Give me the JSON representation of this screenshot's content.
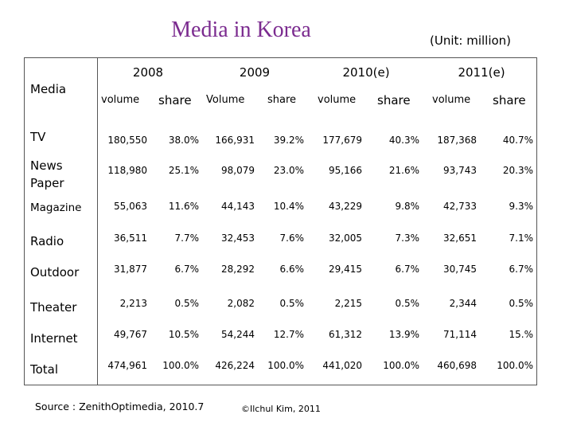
{
  "title": "Media in Korea",
  "unit": "(Unit: million)",
  "header": {
    "media": "Media",
    "years": [
      "2008",
      "2009",
      "2010(e)",
      "2011(e)"
    ],
    "subheaders": [
      "volume",
      "share",
      "Volume",
      "share",
      "volume",
      "share",
      "volume",
      "share"
    ]
  },
  "rows": [
    {
      "label": "TV",
      "values": [
        "180,550",
        "38.0%",
        "166,931",
        "39.2%",
        "177,679",
        "40.3%",
        "187,368",
        "40.7%"
      ]
    },
    {
      "label": "News Paper",
      "values": [
        "118,980",
        "25.1%",
        "98,079",
        "23.0%",
        "95,166",
        "21.6%",
        "93,743",
        "20.3%"
      ]
    },
    {
      "label": "Magazine",
      "values": [
        "55,063",
        "11.6%",
        "44,143",
        "10.4%",
        "43,229",
        "9.8%",
        "42,733",
        "9.3%"
      ]
    },
    {
      "label": "Radio",
      "values": [
        "36,511",
        "7.7%",
        "32,453",
        "7.6%",
        "32,005",
        "7.3%",
        "32,651",
        "7.1%"
      ]
    },
    {
      "label": "Outdoor",
      "values": [
        "31,877",
        "6.7%",
        "28,292",
        "6.6%",
        "29,415",
        "6.7%",
        "30,745",
        "6.7%"
      ]
    },
    {
      "label": "Theater",
      "values": [
        "2,213",
        "0.5%",
        "2,082",
        "0.5%",
        "2,215",
        "0.5%",
        "2,344",
        "0.5%"
      ]
    },
    {
      "label": "Internet",
      "values": [
        "49,767",
        "10.5%",
        "54,244",
        "12.7%",
        "61,312",
        "13.9%",
        "71,114",
        "15.%"
      ]
    },
    {
      "label": "Total",
      "values": [
        "474,961",
        "100.0%",
        "426,224",
        "100.0%",
        "441,020",
        "100.0%",
        "460,698",
        "100.0%"
      ]
    }
  ],
  "source": "Source : ZenithOptimedia, 2010.7",
  "copyright": "©Ilchul Kim, 2011"
}
